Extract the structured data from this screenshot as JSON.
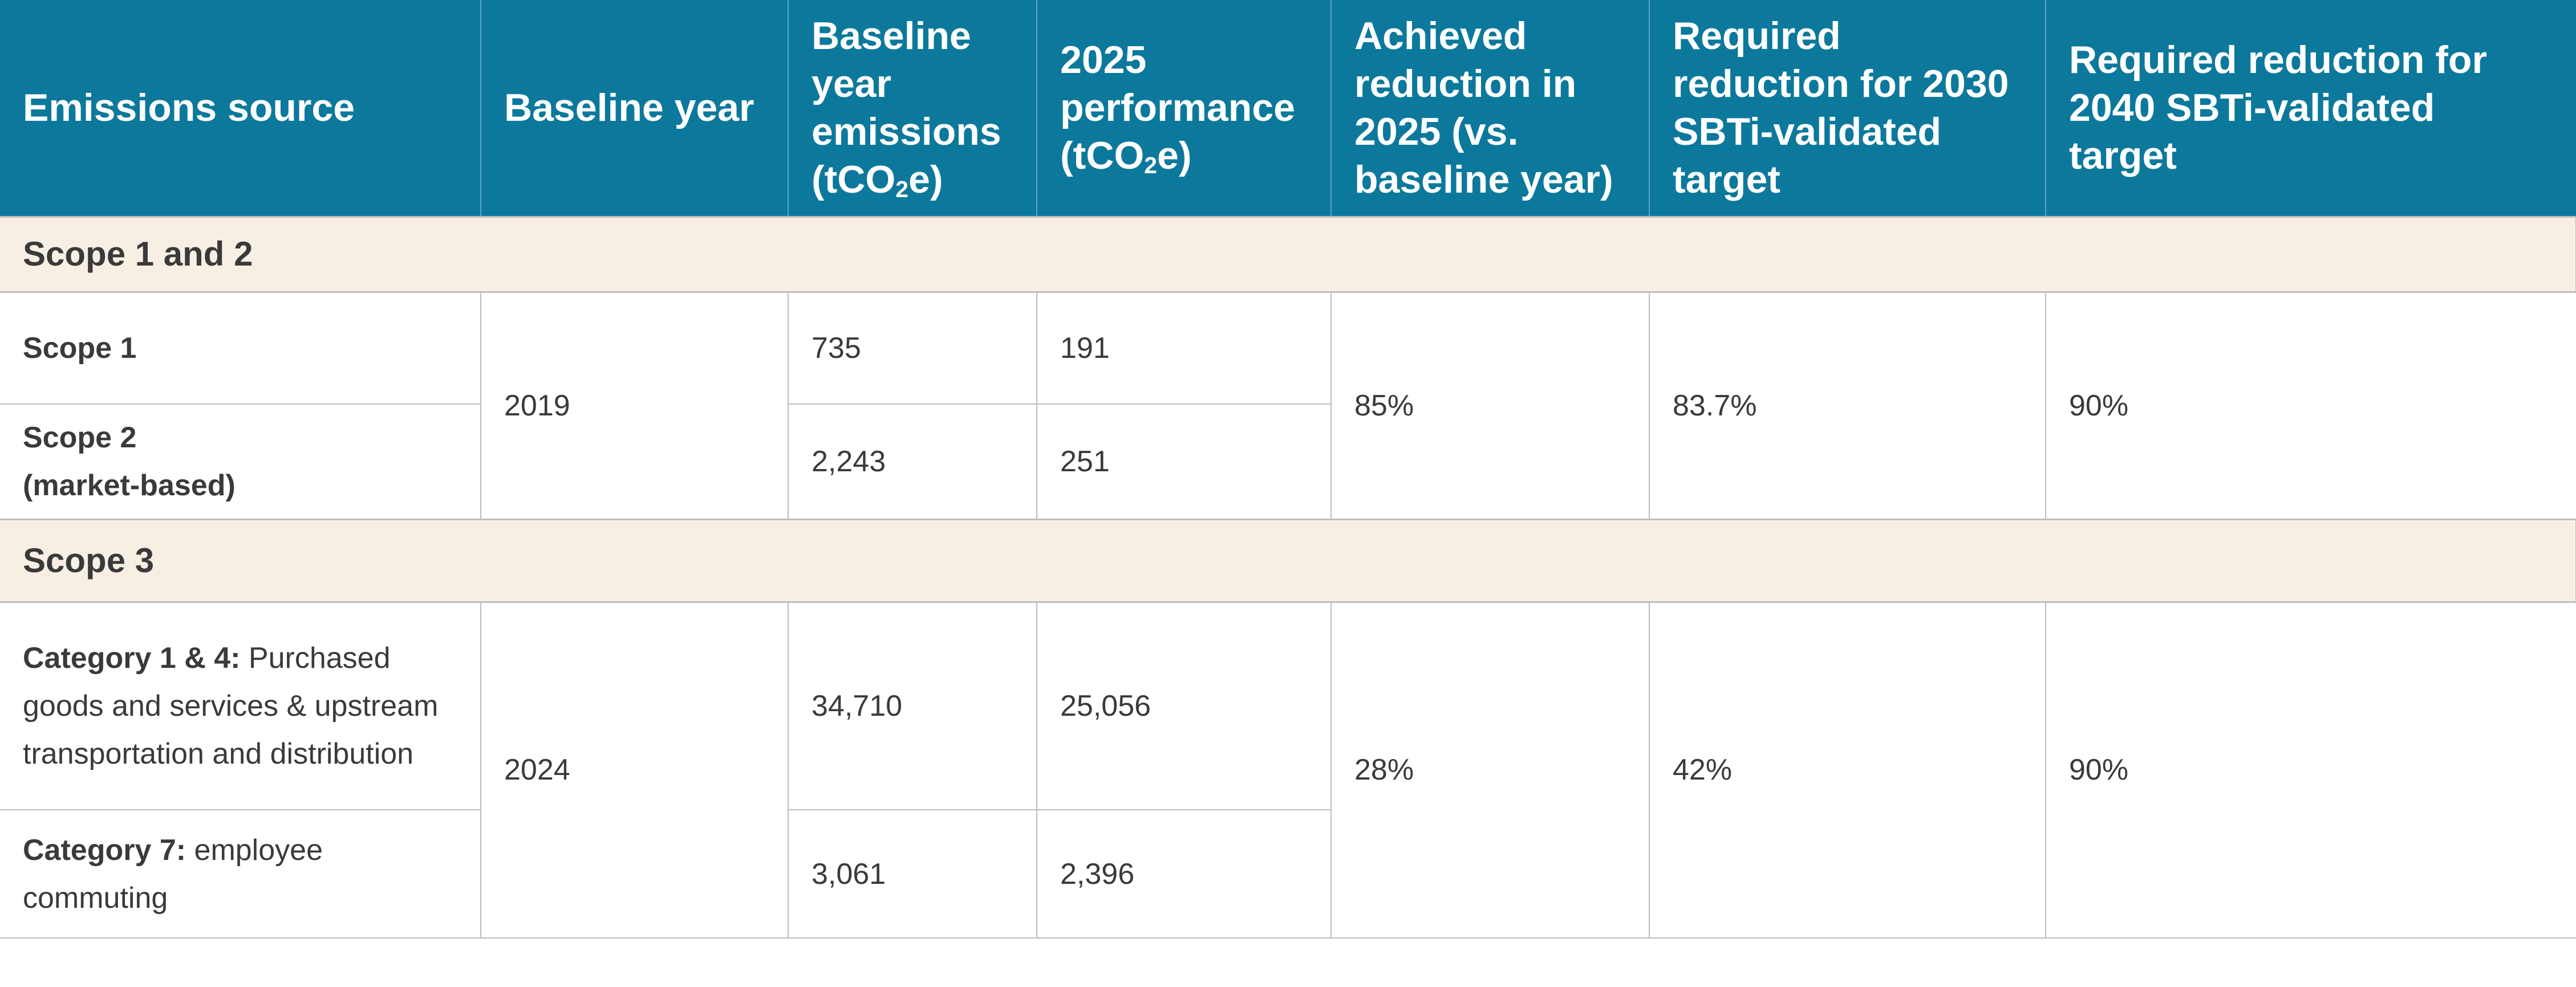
{
  "header": {
    "col1": "Emissions source",
    "col2": "Baseline year",
    "col3_a": "Baseline year emissions (tCO",
    "col3_sub": "2",
    "col3_b": "e)",
    "col4_a": "2025 performance (tCO",
    "col4_sub": "2",
    "col4_b": "e)",
    "col5": "Achieved reduction in 2025 (vs. baseline year)",
    "col6": "Required reduction for 2030 SBTi-validated target",
    "col7": "Required reduction for 2040 SBTi-validated target"
  },
  "groups": {
    "scope12": "Scope 1 and 2",
    "scope3": "Scope 3"
  },
  "scope12": {
    "rows": [
      {
        "source": "Scope 1",
        "baseline_emissions": "735",
        "performance_2025": "191"
      },
      {
        "source": "Scope 2",
        "source_line2": "(market-based)",
        "baseline_emissions": "2,243",
        "performance_2025": "251"
      }
    ],
    "baseline_year": "2019",
    "achieved_reduction": "85%",
    "required_2030": "83.7%",
    "required_2040": "90%"
  },
  "scope3": {
    "rows": [
      {
        "source_bold": "Category 1 & 4:",
        "source_rest": " Purchased goods and services & upstream transportation and distribution",
        "baseline_emissions": "34,710",
        "performance_2025": "25,056"
      },
      {
        "source_bold": "Category 7:",
        "source_rest": " employee commuting",
        "baseline_emissions": "3,061",
        "performance_2025": "2,396"
      }
    ],
    "baseline_year": "2024",
    "achieved_reduction": "28%",
    "required_2030": "42%",
    "required_2040": "90%"
  }
}
